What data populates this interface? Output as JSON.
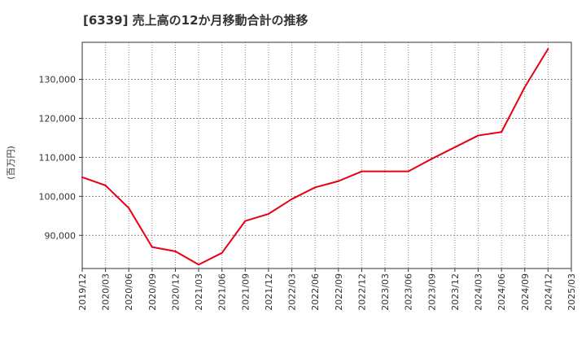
{
  "chart_data": {
    "type": "line",
    "title": "[6339]  売上高の12か月移動合計の推移",
    "ylabel": "(百万円)",
    "xlabel": "",
    "ylim": [
      81500,
      139500
    ],
    "yticks": [
      90000,
      100000,
      110000,
      120000,
      130000
    ],
    "ytick_labels": [
      "90,000",
      "100,000",
      "110,000",
      "120,000",
      "130,000"
    ],
    "xtick_labels": [
      "2019/12",
      "2020/03",
      "2020/06",
      "2020/09",
      "2020/12",
      "2021/03",
      "2021/06",
      "2021/09",
      "2021/12",
      "2022/03",
      "2022/06",
      "2022/09",
      "2022/12",
      "2023/03",
      "2023/06",
      "2023/09",
      "2023/12",
      "2024/03",
      "2024/06",
      "2024/09",
      "2024/12",
      "2025/03"
    ],
    "grid": true,
    "series": [
      {
        "name": "売上高の12か月移動合計",
        "color": "#e60012",
        "x": [
          "2019/12",
          "2020/03",
          "2020/06",
          "2020/09",
          "2020/12",
          "2021/03",
          "2021/06",
          "2021/09",
          "2021/12",
          "2022/03",
          "2022/06",
          "2022/09",
          "2022/12",
          "2023/03",
          "2023/06",
          "2023/09",
          "2023/12",
          "2024/03",
          "2024/06",
          "2024/09",
          "2024/12"
        ],
        "values": [
          104900,
          102800,
          97000,
          87000,
          85900,
          82500,
          85500,
          93700,
          95500,
          99300,
          102300,
          103900,
          106400,
          106400,
          106400,
          109600,
          112600,
          115600,
          116500,
          128000,
          137800
        ]
      }
    ]
  }
}
